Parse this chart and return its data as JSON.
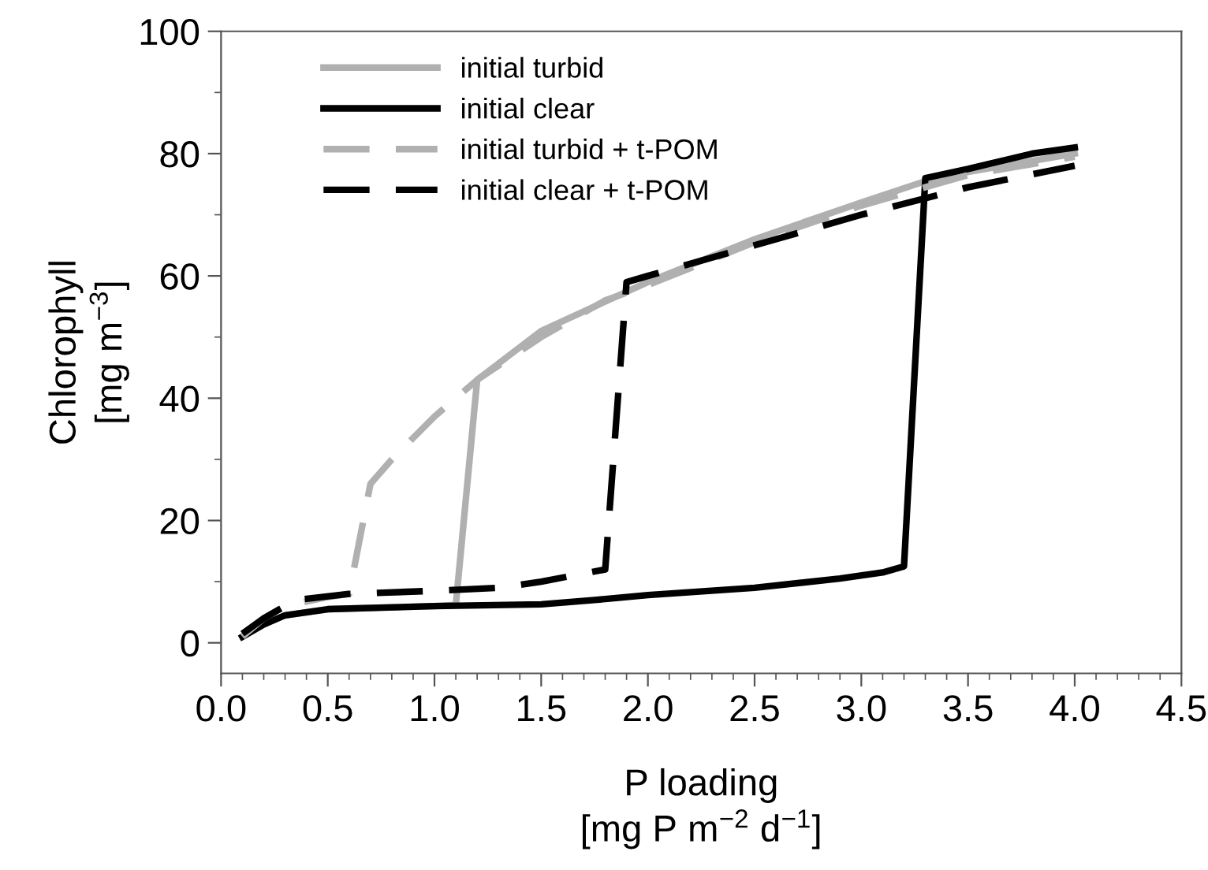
{
  "chart_data": {
    "type": "line",
    "xlabel": "P loading\n[mg P m$^{−2}$ d$^{−1}$]",
    "ylabel": "Chlorophyll\n[mg m$^{−3}$]",
    "xlim": [
      0,
      4.5
    ],
    "ylim": [
      -5,
      100
    ],
    "xticks": [
      {
        "value": 0,
        "label": "0.0"
      },
      0.5,
      {
        "value": 1,
        "label": "1.0"
      },
      1.5,
      {
        "value": 2,
        "label": "2.0"
      },
      2.5,
      {
        "value": 3,
        "label": "3.0"
      },
      3.5,
      {
        "value": 4,
        "label": "4.0"
      },
      4.5
    ],
    "yticks": [
      0,
      20,
      40,
      60,
      80,
      100
    ],
    "grid": false,
    "legend": "top left",
    "marker": "none",
    "series": [
      {
        "name": "initial turbid",
        "color": "#b0b0b0",
        "line_style": "solid",
        "x": [
          0.1,
          0.2,
          0.3,
          0.5,
          0.8,
          1.0,
          1.1,
          1.2,
          1.5,
          2.0,
          2.5,
          3.0,
          3.3,
          3.5,
          4.0
        ],
        "values": [
          1,
          3,
          4.5,
          5.5,
          5.8,
          6,
          6.2,
          43,
          51,
          59,
          66,
          72,
          75.5,
          77,
          80
        ]
      },
      {
        "name": "initial clear",
        "color": "#000000",
        "line_style": "solid",
        "x": [
          0.1,
          0.2,
          0.3,
          0.5,
          1.0,
          1.5,
          1.75,
          2.0,
          2.5,
          2.9,
          3.1,
          3.2,
          3.3,
          3.5,
          3.8,
          4.0
        ],
        "values": [
          1,
          3,
          4.5,
          5.5,
          6,
          6.3,
          7,
          7.8,
          9,
          10.5,
          11.5,
          12.5,
          76,
          77.5,
          80,
          81
        ]
      },
      {
        "name": "initial turbid + t-POM",
        "color": "#b0b0b0",
        "line_style": "dashed",
        "x": [
          0.1,
          0.2,
          0.3,
          0.5,
          0.6,
          0.7,
          0.8,
          1.0,
          1.2,
          1.5,
          1.8,
          2.0,
          2.5,
          3.0,
          3.5,
          4.0
        ],
        "values": [
          1,
          4,
          6,
          7.5,
          8,
          26,
          30,
          37,
          43,
          50,
          56,
          58.5,
          65.5,
          71.5,
          76.5,
          79.5
        ]
      },
      {
        "name": "initial clear + t-POM",
        "color": "#000000",
        "line_style": "dashed",
        "x": [
          0.1,
          0.2,
          0.35,
          0.6,
          1.0,
          1.3,
          1.5,
          1.8,
          1.9,
          2.0,
          2.5,
          3.0,
          3.5,
          4.0
        ],
        "values": [
          1.5,
          4,
          7,
          8,
          8.5,
          9,
          10,
          12,
          59,
          60,
          65,
          70,
          74.5,
          78
        ]
      }
    ]
  }
}
